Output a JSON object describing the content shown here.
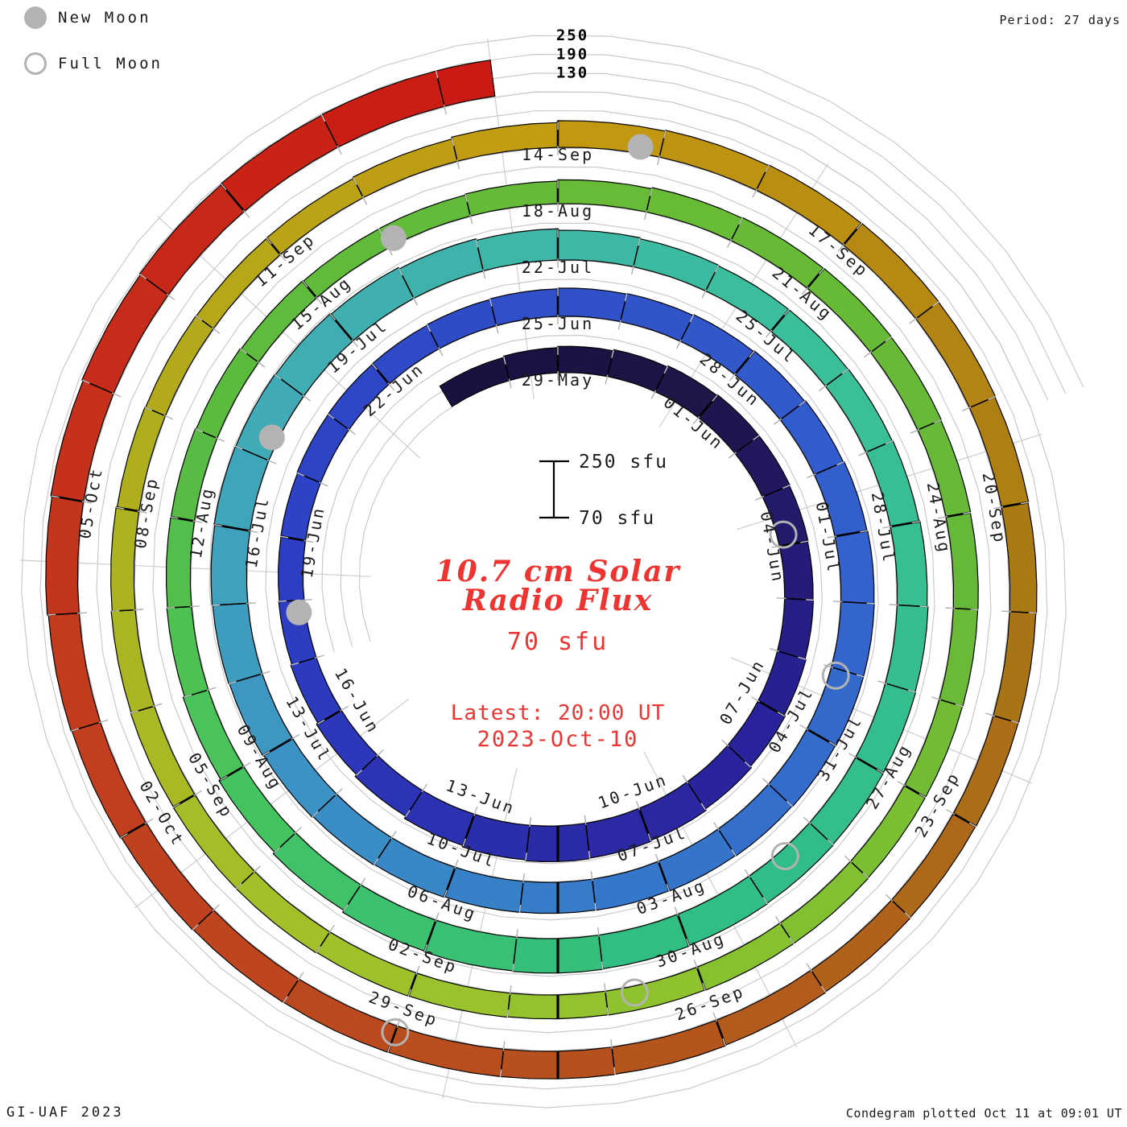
{
  "legend": {
    "new_moon": "New Moon",
    "full_moon": "Full Moon"
  },
  "header": {
    "period": "Period: 27 days"
  },
  "footer": {
    "left": "GI-UAF 2023",
    "right": "Condegram plotted Oct 11 at 09:01 UT"
  },
  "center": {
    "title_line1": "10.7 cm Solar",
    "title_line2": "Radio Flux",
    "baseline_value": "70 sfu",
    "latest_line1": "Latest: 20:00 UT",
    "latest_line2": "2023-Oct-10",
    "scale_top": "250 sfu",
    "scale_bottom": "70 sfu"
  },
  "colors": {
    "accent_red_text": "#ee3431",
    "moon_gray": "#b3b3b3",
    "grid_gray": "#c6c6c6",
    "tick_black": "#000000"
  },
  "chart_data": {
    "type": "spiral",
    "title": "10.7 cm Solar Radio Flux",
    "period_days": 27,
    "flux_axis_sfu": [
      70,
      130,
      190,
      250
    ],
    "radial_axis_labels": [
      "250",
      "190",
      "130"
    ],
    "start_date": "2023-05-27",
    "end_date_time": "2023-10-10 20:00 UT",
    "turn_start_labels": [
      "29-May",
      "25-Jun",
      "22-Jul",
      "18-Aug",
      "14-Sep"
    ],
    "tick_labels": [
      "29-May",
      "01-Jun",
      "04-Jun",
      "07-Jun",
      "10-Jun",
      "13-Jun",
      "16-Jun",
      "19-Jun",
      "22-Jun",
      "25-Jun",
      "28-Jun",
      "01-Jul",
      "04-Jul",
      "07-Jul",
      "10-Jul",
      "13-Jul",
      "16-Jul",
      "19-Jul",
      "22-Jul",
      "25-Jul",
      "28-Jul",
      "31-Jul",
      "03-Aug",
      "06-Aug",
      "09-Aug",
      "12-Aug",
      "15-Aug",
      "18-Aug",
      "21-Aug",
      "24-Aug",
      "27-Aug",
      "30-Aug",
      "02-Sep",
      "05-Sep",
      "08-Sep",
      "11-Sep",
      "14-Sep",
      "17-Sep",
      "20-Sep",
      "23-Sep",
      "26-Sep",
      "29-Sep",
      "02-Oct",
      "05-Oct"
    ],
    "daily_flux_sfu": [
      146,
      150,
      154,
      158,
      162,
      165,
      165,
      163,
      161,
      162,
      165,
      169,
      174,
      179,
      182,
      184,
      181,
      176,
      168,
      161,
      155,
      151,
      149,
      150,
      152,
      153,
      154,
      156,
      158,
      160,
      162,
      165,
      168,
      171,
      174,
      176,
      177,
      177,
      175,
      173,
      171,
      170,
      169,
      170,
      172,
      174,
      177,
      180,
      182,
      184,
      186,
      185,
      183,
      180,
      175,
      170,
      165,
      162,
      160,
      160,
      161,
      163,
      166,
      169,
      171,
      172,
      174,
      176,
      178,
      180,
      178,
      175,
      168,
      161,
      154,
      149,
      147,
      146,
      143,
      140,
      138,
      139,
      142,
      146,
      150,
      152,
      153,
      152,
      150,
      149,
      148,
      147,
      147,
      148,
      148,
      147,
      146,
      147,
      148,
      150,
      150,
      149,
      147,
      144,
      141,
      139,
      138,
      139,
      143,
      149,
      155,
      158,
      160,
      161,
      160,
      158,
      156,
      154,
      153,
      152,
      153,
      155,
      157,
      158,
      158,
      159,
      160,
      162,
      165,
      168,
      172,
      176,
      180,
      183,
      185,
      186,
      186
    ],
    "moons": [
      {
        "type": "new",
        "date": "2023-06-18",
        "t": 19.8
      },
      {
        "type": "new",
        "date": "2023-07-17",
        "t": 49.3
      },
      {
        "type": "new",
        "date": "2023-08-16",
        "t": 79.1
      },
      {
        "type": "new",
        "date": "2023-09-15",
        "t": 108.8
      },
      {
        "type": "full",
        "date": "2023-06-04",
        "t": 5.8
      },
      {
        "type": "full",
        "date": "2023-07-03",
        "t": 35.1
      },
      {
        "type": "full",
        "date": "2023-08-01",
        "t": 64.5
      },
      {
        "type": "full",
        "date": "2023-08-31",
        "t": 93.7
      },
      {
        "type": "full",
        "date": "2023-09-29",
        "t": 123.0
      }
    ],
    "color_stops": [
      [
        -2,
        "#191040"
      ],
      [
        3,
        "#1e1549"
      ],
      [
        9,
        "#282199"
      ],
      [
        13,
        "#2b2aa6"
      ],
      [
        20,
        "#2c3ec4"
      ],
      [
        27,
        "#3050c8"
      ],
      [
        34,
        "#3363cc"
      ],
      [
        40,
        "#3579ca"
      ],
      [
        45,
        "#3d95c4"
      ],
      [
        50,
        "#40acb4"
      ],
      [
        57,
        "#3cbf9c"
      ],
      [
        66,
        "#2fbd85"
      ],
      [
        72,
        "#46c45e"
      ],
      [
        76,
        "#5abb40"
      ],
      [
        82,
        "#68bb35"
      ],
      [
        88,
        "#66b838"
      ],
      [
        90,
        "#76bd32"
      ],
      [
        93,
        "#8cc230"
      ],
      [
        97,
        "#a2c22a"
      ],
      [
        103,
        "#b0ac1c"
      ],
      [
        108,
        "#c49a10"
      ],
      [
        115,
        "#a87714"
      ],
      [
        121,
        "#b5521e"
      ],
      [
        127,
        "#c23d1e"
      ],
      [
        135,
        "#cc1712"
      ]
    ]
  }
}
